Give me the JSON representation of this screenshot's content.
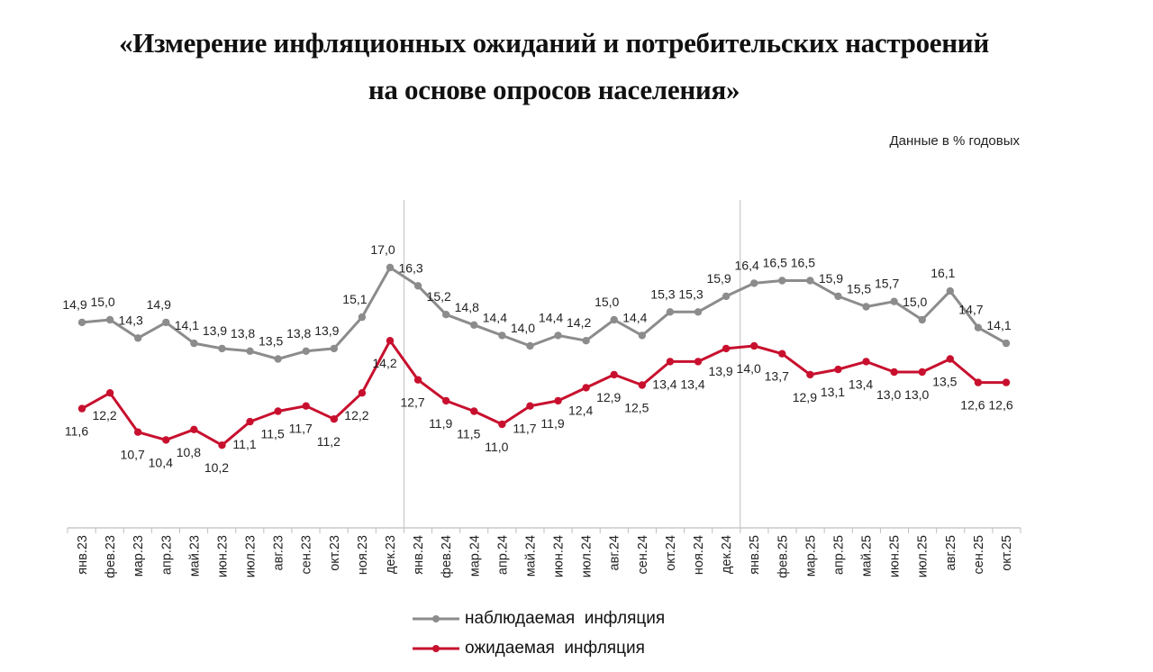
{
  "title_line1": "«Измерение инфляционных ожиданий и потребительских настроений",
  "title_line2": "на основе опросов населения»",
  "units_note": "Данные в % годовых",
  "colors": {
    "observed": "#8c8c8c",
    "expected": "#c8102e",
    "axis": "#bfbfbf"
  },
  "legend": [
    {
      "label": "наблюдаемая  инфляция",
      "color": "#8c8c8c"
    },
    {
      "label": "ожидаемая  инфляция",
      "color": "#c8102e"
    }
  ],
  "chart_data": {
    "type": "line",
    "title": "«Измерение инфляционных ожиданий и потребительских настроений на основе опросов населения»",
    "subtitle": "Данные в % годовых",
    "xlabel": "",
    "ylabel": "",
    "ylim": [
      8,
      17
    ],
    "grid": false,
    "legend_position": "bottom",
    "year_separators_after": [
      "дек.23",
      "дек.24"
    ],
    "categories": [
      "янв.23",
      "фев.23",
      "мар.23",
      "апр.23",
      "май.23",
      "июн.23",
      "июл.23",
      "авг.23",
      "сен.23",
      "окт.23",
      "ноя.23",
      "дек.23",
      "янв.24",
      "фев.24",
      "мар.24",
      "апр.24",
      "май.24",
      "июн.24",
      "июл.24",
      "авг.24",
      "сен.24",
      "окт.24",
      "ноя.24",
      "дек.24",
      "янв.25",
      "фев.25",
      "мар.25",
      "апр.25",
      "май.25",
      "июн.25",
      "июл.25",
      "авг.25",
      "сен.25",
      "окт.25"
    ],
    "series": [
      {
        "name": "наблюдаемая  инфляция",
        "values": [
          14.9,
          15.0,
          14.3,
          14.9,
          14.1,
          13.9,
          13.8,
          13.5,
          13.8,
          13.9,
          15.1,
          17.0,
          16.3,
          15.2,
          14.8,
          14.4,
          14.0,
          14.4,
          14.2,
          15.0,
          14.4,
          15.3,
          15.3,
          15.9,
          16.4,
          16.5,
          16.5,
          15.9,
          15.5,
          15.7,
          15.0,
          16.1,
          14.7,
          14.1
        ],
        "labels": [
          "14,9",
          "15,0",
          "14,3",
          "14,9",
          "14,1",
          "13,9",
          "13,8",
          "13,5",
          "13,8",
          "13,9",
          "15,1",
          "17,0",
          "16,3",
          "15,2",
          "14,8",
          "14,4",
          "14,0",
          "14,4",
          "14,2",
          "15,0",
          "14,4",
          "15,3",
          "15,3",
          "15,9",
          "16,4",
          "16,5",
          "16,5",
          "15,9",
          "15,5",
          "15,7",
          "15,0",
          "16,1",
          "14,7",
          "14,1"
        ]
      },
      {
        "name": "ожидаемая  инфляция",
        "values": [
          11.6,
          12.2,
          10.7,
          10.4,
          10.8,
          10.2,
          11.1,
          11.5,
          11.7,
          11.2,
          12.2,
          14.2,
          12.7,
          11.9,
          11.5,
          11.0,
          11.7,
          11.9,
          12.4,
          12.9,
          12.5,
          13.4,
          13.4,
          13.9,
          14.0,
          13.7,
          12.9,
          13.1,
          13.4,
          13.0,
          13.0,
          13.5,
          12.6,
          12.6
        ],
        "labels": [
          "11,6",
          "12,2",
          "10,7",
          "10,4",
          "10,8",
          "10,2",
          "11,1",
          "11,5",
          "11,7",
          "11,2",
          "12,2",
          "14,2",
          "12,7",
          "11,9",
          "11,5",
          "11,0",
          "11,7",
          "11,9",
          "12,4",
          "12,9",
          "12,5",
          "13,4",
          "13,4",
          "13,9",
          "14,0",
          "13,7",
          "12,9",
          "13,1",
          "13,4",
          "13,0",
          "13,0",
          "13,5",
          "12,6",
          "12,6"
        ]
      }
    ]
  }
}
